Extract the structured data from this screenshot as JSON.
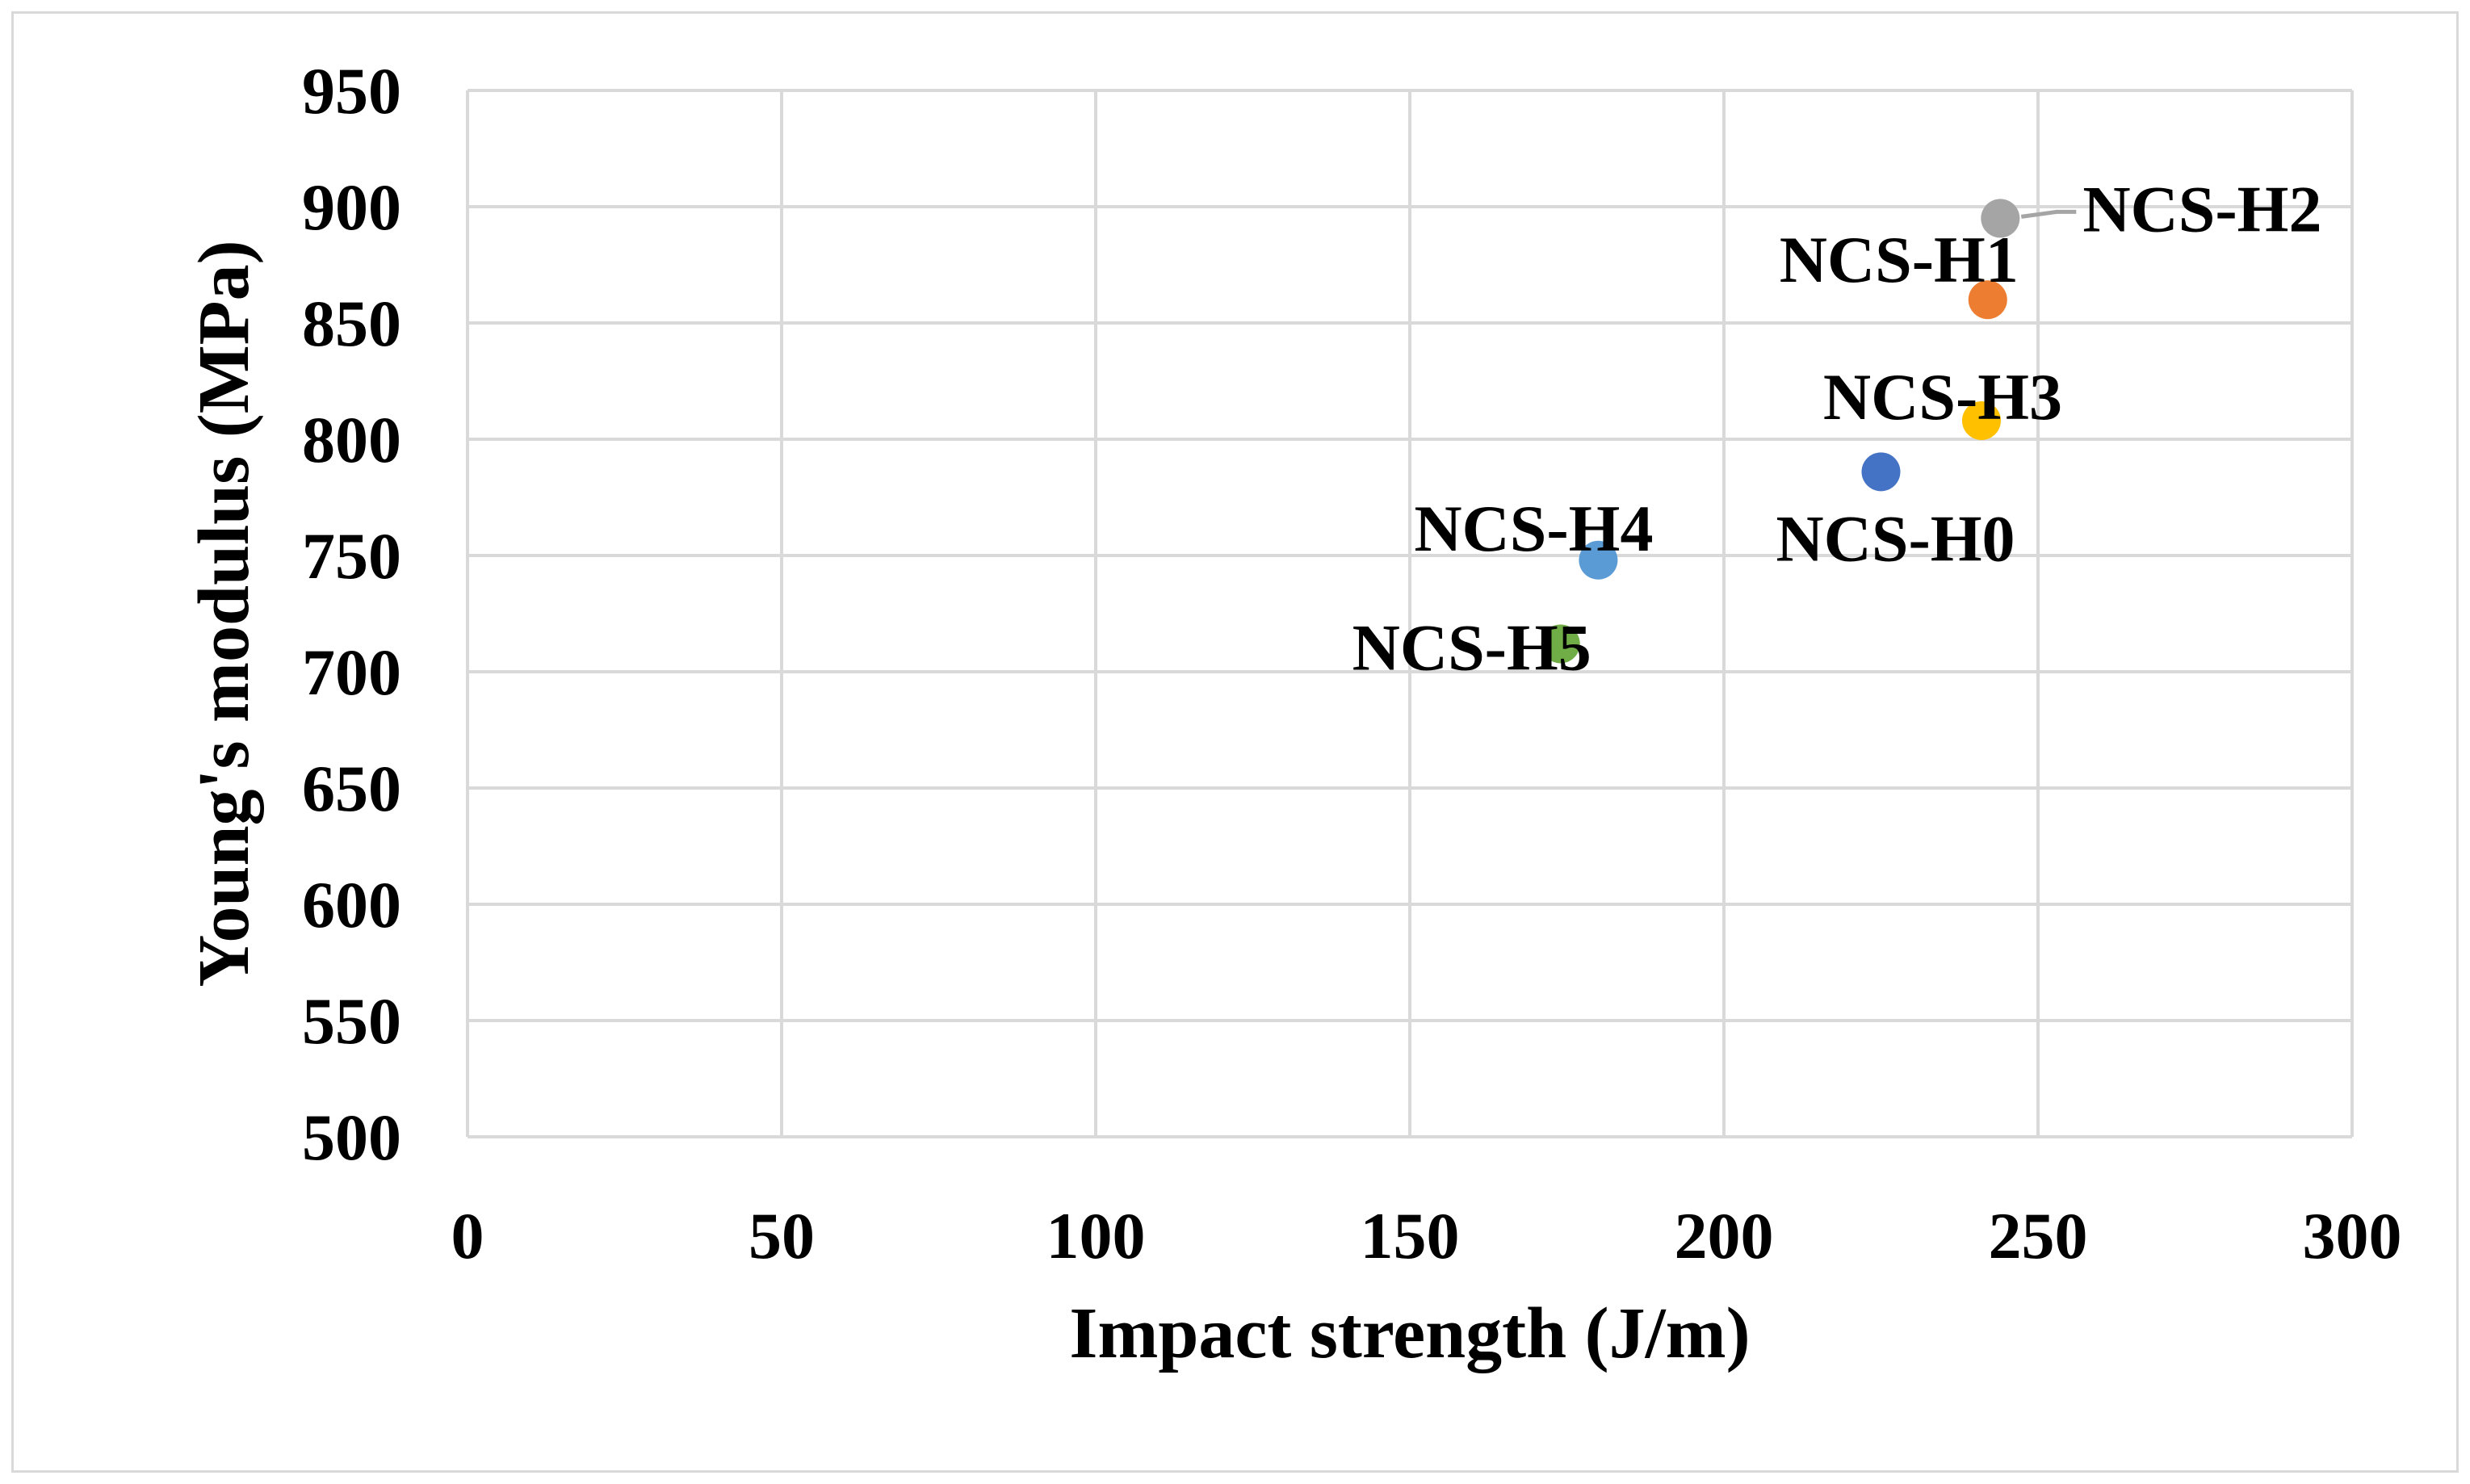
{
  "chart_data": {
    "type": "scatter",
    "title": "",
    "xlabel": "Impact strength (J/m)",
    "ylabel": "Young's modulus (MPa)",
    "xlim": [
      0,
      300
    ],
    "ylim": [
      500,
      950
    ],
    "x_ticks": [
      0,
      50,
      100,
      150,
      200,
      250,
      300
    ],
    "y_ticks": [
      500,
      550,
      600,
      650,
      700,
      750,
      800,
      850,
      900,
      950
    ],
    "grid": true,
    "legend": "none",
    "points": [
      {
        "name": "NCS-H0",
        "x": 225,
        "y": 786,
        "color": "#4472c4"
      },
      {
        "name": "NCS-H1",
        "x": 242,
        "y": 860,
        "color": "#ed7d31"
      },
      {
        "name": "NCS-H2",
        "x": 244,
        "y": 895,
        "color": "#a5a5a5"
      },
      {
        "name": "NCS-H3",
        "x": 241,
        "y": 808,
        "color": "#ffc000"
      },
      {
        "name": "NCS-H4",
        "x": 180,
        "y": 748,
        "color": "#5b9bd5"
      },
      {
        "name": "NCS-H5",
        "x": 174,
        "y": 712,
        "color": "#70ad47"
      }
    ]
  }
}
